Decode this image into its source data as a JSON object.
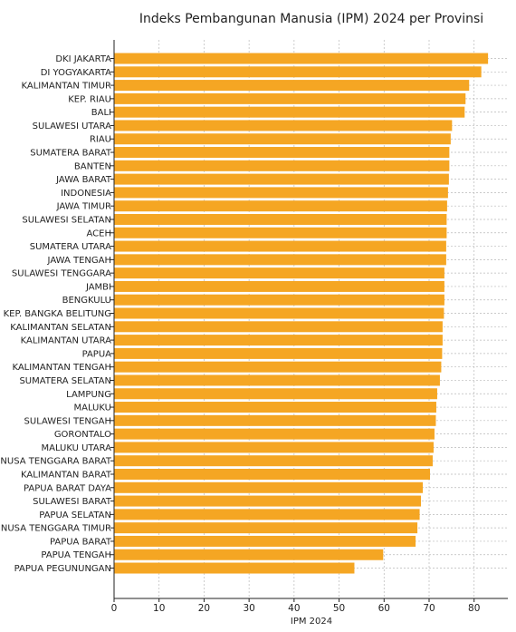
{
  "chart_data": {
    "type": "bar",
    "orientation": "horizontal",
    "title": "Indeks Pembangunan Manusia (IPM) 2024 per Provinsi",
    "xlabel": "IPM 2024",
    "ylabel": "",
    "xlim": [
      0,
      87.5
    ],
    "xticks": [
      "0",
      "10",
      "20",
      "30",
      "40",
      "50",
      "60",
      "70",
      "80"
    ],
    "grid": true,
    "bar_color": "#f5a623",
    "categories": [
      "DKI JAKARTA",
      "DI YOGYAKARTA",
      "KALIMANTAN TIMUR",
      "KEP. RIAU",
      "BALI",
      "SULAWESI UTARA",
      "RIAU",
      "SUMATERA BARAT",
      "BANTEN",
      "JAWA BARAT",
      "INDONESIA",
      "JAWA TIMUR",
      "SULAWESI SELATAN",
      "ACEH",
      "SUMATERA UTARA",
      "JAWA TENGAH",
      "SULAWESI TENGGARA",
      "JAMBI",
      "BENGKULU",
      "KEP. BANGKA BELITUNG",
      "KALIMANTAN SELATAN",
      "KALIMANTAN UTARA",
      "PAPUA",
      "KALIMANTAN TENGAH",
      "SUMATERA SELATAN",
      "LAMPUNG",
      "MALUKU",
      "SULAWESI TENGAH",
      "GORONTALO",
      "MALUKU UTARA",
      "NUSA TENGGARA BARAT",
      "KALIMANTAN BARAT",
      "PAPUA BARAT DAYA",
      "SULAWESI BARAT",
      "PAPUA SELATAN",
      "NUSA TENGGARA TIMUR",
      "PAPUA BARAT",
      "PAPUA TENGAH",
      "PAPUA PEGUNUNGAN"
    ],
    "values": [
      83.1,
      81.6,
      78.9,
      78.1,
      77.9,
      75.1,
      74.8,
      74.5,
      74.5,
      74.4,
      74.2,
      74.0,
      73.9,
      73.9,
      73.8,
      73.8,
      73.4,
      73.4,
      73.4,
      73.3,
      73.0,
      73.0,
      72.9,
      72.7,
      72.4,
      71.8,
      71.6,
      71.5,
      71.2,
      71.0,
      70.8,
      70.2,
      68.6,
      68.2,
      67.9,
      67.4,
      67.0,
      59.8,
      53.4
    ]
  }
}
